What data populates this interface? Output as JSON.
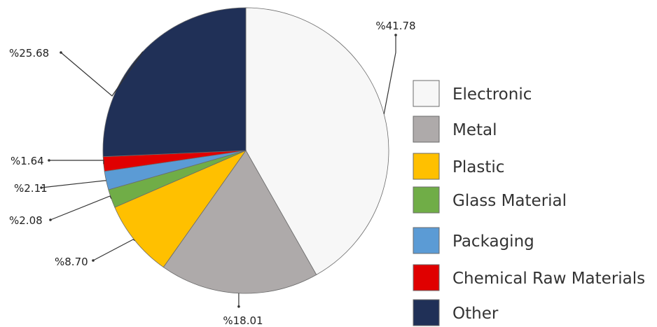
{
  "chart_data": {
    "type": "pie",
    "title": "",
    "slices": [
      {
        "name": "Electronic",
        "value": 41.78,
        "label": "%41.78",
        "color": "#f7f7f7"
      },
      {
        "name": "Metal",
        "value": 18.01,
        "label": "%18.01",
        "color": "#aeaaaa"
      },
      {
        "name": "Plastic",
        "value": 8.7,
        "label": "%8.70",
        "color": "#ffc000"
      },
      {
        "name": "Glass Material",
        "value": 2.08,
        "label": "%2.08",
        "color": "#70ad47"
      },
      {
        "name": "Packaging",
        "value": 2.11,
        "label": "%2.11",
        "color": "#5b9bd5"
      },
      {
        "name": "Chemical Raw Materials",
        "value": 1.64,
        "label": "%1.64",
        "color": "#e00000"
      },
      {
        "name": "Other",
        "value": 25.68,
        "label": "%25.68",
        "color": "#203057"
      }
    ],
    "legend_position": "right",
    "start": "12 o'clock, clockwise"
  }
}
